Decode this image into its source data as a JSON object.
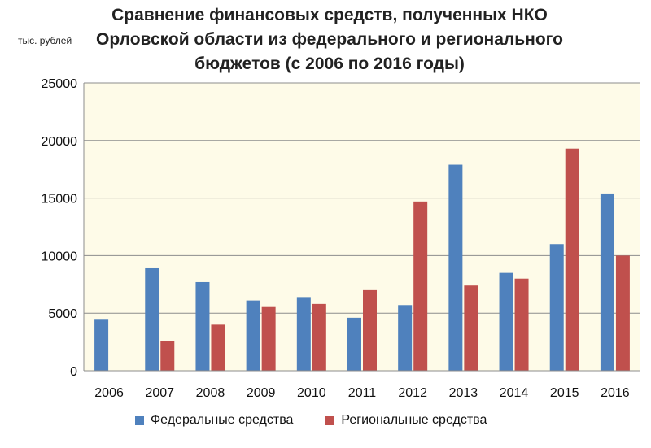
{
  "chart_data": {
    "type": "bar",
    "title": "Сравнение финансовых средств, полученных НКО Орловской области из федерального и регионального бюджетов (с 2006 по 2016 годы)",
    "ylabel": "тыс. рублей",
    "xlabel": "",
    "categories": [
      "2006",
      "2007",
      "2008",
      "2009",
      "2010",
      "2011",
      "2012",
      "2013",
      "2014",
      "2015",
      "2016"
    ],
    "series": [
      {
        "name": "Федеральные средства",
        "color": "#4f81bd",
        "values": [
          4500,
          8900,
          7700,
          6100,
          6400,
          4600,
          5700,
          17900,
          8500,
          11000,
          15400
        ]
      },
      {
        "name": "Региональные средства",
        "color": "#c0504d",
        "values": [
          0,
          2600,
          4000,
          5600,
          5800,
          7000,
          14700,
          7400,
          8000,
          19300,
          10000
        ]
      }
    ],
    "ylim": [
      0,
      25000
    ],
    "yticks": [
      "0",
      "5000",
      "10000",
      "15000",
      "20000",
      "25000"
    ],
    "grid": true,
    "plot_background": "#fefbe8",
    "legend_position": "bottom"
  }
}
